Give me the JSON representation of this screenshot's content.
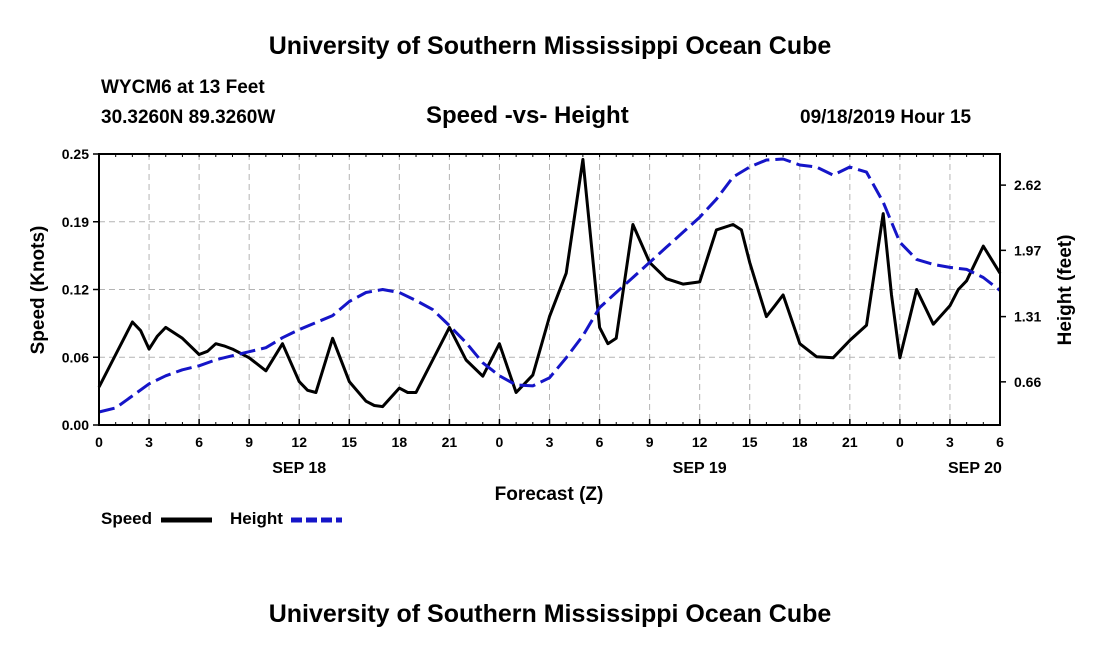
{
  "header": {
    "title": "University of Southern Mississippi Ocean Cube",
    "station": "WYCM6 at 13 Feet",
    "location": "30.3260N 89.3260W",
    "subtitle": "Speed -vs- Height",
    "datetime": "09/18/2019 Hour 15"
  },
  "footer": {
    "title": "University of Southern Mississippi Ocean Cube"
  },
  "legend": {
    "speed_label": "Speed",
    "height_label": "Height"
  },
  "colors": {
    "speed": "#000000",
    "height": "#1515c8",
    "grid": "#b4b4b4",
    "axis": "#000000"
  },
  "chart_data": {
    "type": "line",
    "title": "Speed -vs- Height",
    "xlabel": "Forecast (Z)",
    "ylabel_left": "Speed (Knots)",
    "ylabel_right": "Height (feet)",
    "x_unit": "hours from SEP 18 00Z",
    "xlim": [
      0,
      54
    ],
    "ylim_left": [
      0,
      0.25
    ],
    "ylim_right": [
      0.23,
      2.93
    ],
    "x_ticks": [
      0,
      3,
      6,
      9,
      12,
      15,
      18,
      21,
      24,
      27,
      30,
      33,
      36,
      39,
      42,
      45,
      48,
      51,
      54
    ],
    "x_tick_labels": [
      "0",
      "3",
      "6",
      "9",
      "12",
      "15",
      "18",
      "21",
      "0",
      "3",
      "6",
      "9",
      "12",
      "15",
      "18",
      "21",
      "0",
      "3",
      "6"
    ],
    "date_labels": [
      {
        "x": 12,
        "label": "SEP 18"
      },
      {
        "x": 36,
        "label": "SEP 19"
      },
      {
        "x": 52.5,
        "label": "SEP 20"
      }
    ],
    "y_left_ticks": [
      0.0,
      0.0625,
      0.125,
      0.1875,
      0.25
    ],
    "y_left_tick_labels": [
      "0.00",
      "0.06",
      "0.12",
      "0.19",
      "0.25"
    ],
    "y_right_ticks": [
      0.66,
      1.31,
      1.97,
      2.62
    ],
    "y_right_tick_labels": [
      "0.66",
      "1.31",
      "1.97",
      "2.62"
    ],
    "grid": true,
    "legend_position": "bottom-left",
    "series": [
      {
        "name": "Speed",
        "axis": "left",
        "style": "solid",
        "x": [
          0,
          1,
          2,
          2.5,
          3,
          3.5,
          4,
          5,
          6,
          6.5,
          7,
          7.5,
          8,
          9,
          10,
          11,
          12,
          12.5,
          13,
          14,
          15,
          16,
          16.5,
          17,
          18,
          18.5,
          19,
          20,
          21,
          22,
          23,
          24,
          25,
          26,
          27,
          28,
          29,
          30,
          30.5,
          31,
          32,
          33,
          34,
          35,
          36,
          37,
          38,
          38.5,
          39,
          40,
          40.5,
          41,
          42,
          43,
          44,
          45,
          46,
          47,
          47.5,
          48,
          49,
          50,
          51,
          51.5,
          52,
          53,
          54
        ],
        "values": [
          0.035,
          0.065,
          0.095,
          0.087,
          0.07,
          0.082,
          0.09,
          0.08,
          0.065,
          0.068,
          0.075,
          0.073,
          0.07,
          0.062,
          0.05,
          0.075,
          0.04,
          0.032,
          0.03,
          0.08,
          0.04,
          0.022,
          0.018,
          0.017,
          0.034,
          0.03,
          0.03,
          0.06,
          0.09,
          0.06,
          0.045,
          0.075,
          0.03,
          0.046,
          0.1,
          0.14,
          0.245,
          0.09,
          0.075,
          0.08,
          0.185,
          0.15,
          0.135,
          0.13,
          0.132,
          0.18,
          0.185,
          0.18,
          0.15,
          0.1,
          0.11,
          0.12,
          0.075,
          0.063,
          0.062,
          0.078,
          0.092,
          0.195,
          0.12,
          0.062,
          0.125,
          0.093,
          0.11,
          0.125,
          0.133,
          0.165,
          0.14
        ]
      },
      {
        "name": "Height",
        "axis": "right",
        "style": "dashed",
        "x": [
          0,
          1,
          2,
          3,
          4,
          5,
          6,
          7,
          8,
          9,
          10,
          11,
          12,
          13,
          14,
          15,
          16,
          17,
          18,
          19,
          20,
          21,
          22,
          23,
          24,
          25,
          26,
          27,
          28,
          29,
          30,
          31,
          32,
          33,
          34,
          35,
          36,
          37,
          38,
          39,
          40,
          41,
          42,
          43,
          44,
          45,
          46,
          47,
          48,
          49,
          50,
          51,
          52,
          53,
          54
        ],
        "values": [
          0.36,
          0.4,
          0.52,
          0.64,
          0.72,
          0.78,
          0.82,
          0.88,
          0.92,
          0.96,
          1.0,
          1.1,
          1.18,
          1.25,
          1.32,
          1.46,
          1.55,
          1.58,
          1.55,
          1.47,
          1.38,
          1.22,
          1.05,
          0.85,
          0.72,
          0.63,
          0.62,
          0.7,
          0.9,
          1.12,
          1.4,
          1.55,
          1.7,
          1.85,
          2.0,
          2.15,
          2.3,
          2.48,
          2.7,
          2.8,
          2.87,
          2.88,
          2.82,
          2.8,
          2.72,
          2.8,
          2.75,
          2.45,
          2.05,
          1.88,
          1.83,
          1.8,
          1.78,
          1.7,
          1.57
        ]
      }
    ]
  }
}
